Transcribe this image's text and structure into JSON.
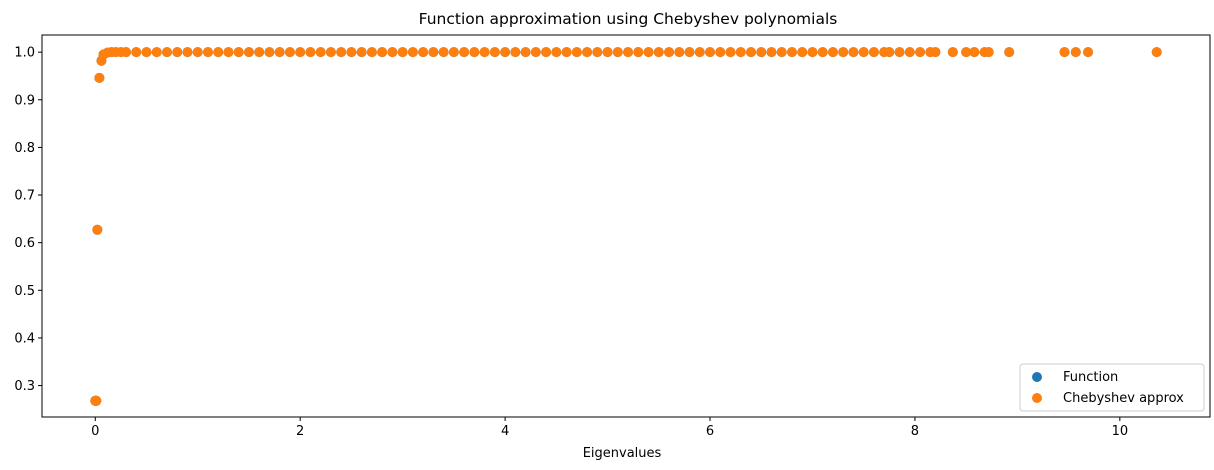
{
  "chart_data": {
    "type": "scatter",
    "title": "Function approximation using Chebyshev polynomials",
    "xlabel": "Eigenvalues",
    "ylabel": "",
    "xlim": [
      -0.52,
      10.88
    ],
    "ylim": [
      0.234,
      1.036
    ],
    "xticks": [
      0,
      2,
      4,
      6,
      8,
      10
    ],
    "yticks": [
      0.3,
      0.4,
      0.5,
      0.6,
      0.7,
      0.8,
      0.9,
      1.0
    ],
    "xtick_labels": [
      "0",
      "2",
      "4",
      "6",
      "8",
      "10"
    ],
    "ytick_labels": [
      "0.3",
      "0.4",
      "0.5",
      "0.6",
      "0.7",
      "0.8",
      "0.9",
      "1.0"
    ],
    "grid": false,
    "legend_position": "lower-right",
    "series": [
      {
        "name": "Function",
        "color": "#1f77b4",
        "points": [
          [
            0.0,
            0.268
          ],
          [
            0.003,
            0.268
          ],
          [
            0.006,
            0.268
          ],
          [
            0.01,
            0.268
          ],
          [
            0.02,
            0.627
          ],
          [
            0.04,
            0.946
          ],
          [
            0.06,
            0.982
          ],
          [
            0.08,
            0.995
          ],
          [
            0.12,
            0.999
          ],
          [
            0.16,
            1.0
          ],
          [
            0.2,
            1.0
          ],
          [
            0.25,
            1.0
          ],
          [
            0.3,
            1.0
          ],
          [
            0.4,
            1.0
          ],
          [
            0.5,
            1.0
          ],
          [
            0.6,
            1.0
          ],
          [
            0.7,
            1.0
          ],
          [
            0.8,
            1.0
          ],
          [
            0.9,
            1.0
          ],
          [
            1.0,
            1.0
          ],
          [
            1.1,
            1.0
          ],
          [
            1.2,
            1.0
          ],
          [
            1.3,
            1.0
          ],
          [
            1.4,
            1.0
          ],
          [
            1.5,
            1.0
          ],
          [
            1.6,
            1.0
          ],
          [
            1.7,
            1.0
          ],
          [
            1.8,
            1.0
          ],
          [
            1.9,
            1.0
          ],
          [
            2.0,
            1.0
          ],
          [
            2.1,
            1.0
          ],
          [
            2.2,
            1.0
          ],
          [
            2.3,
            1.0
          ],
          [
            2.4,
            1.0
          ],
          [
            2.5,
            1.0
          ],
          [
            2.6,
            1.0
          ],
          [
            2.7,
            1.0
          ],
          [
            2.8,
            1.0
          ],
          [
            2.9,
            1.0
          ],
          [
            3.0,
            1.0
          ],
          [
            3.1,
            1.0
          ],
          [
            3.2,
            1.0
          ],
          [
            3.3,
            1.0
          ],
          [
            3.4,
            1.0
          ],
          [
            3.5,
            1.0
          ],
          [
            3.6,
            1.0
          ],
          [
            3.7,
            1.0
          ],
          [
            3.8,
            1.0
          ],
          [
            3.9,
            1.0
          ],
          [
            4.0,
            1.0
          ],
          [
            4.1,
            1.0
          ],
          [
            4.2,
            1.0
          ],
          [
            4.3,
            1.0
          ],
          [
            4.4,
            1.0
          ],
          [
            4.5,
            1.0
          ],
          [
            4.6,
            1.0
          ],
          [
            4.7,
            1.0
          ],
          [
            4.8,
            1.0
          ],
          [
            4.9,
            1.0
          ],
          [
            5.0,
            1.0
          ],
          [
            5.1,
            1.0
          ],
          [
            5.2,
            1.0
          ],
          [
            5.3,
            1.0
          ],
          [
            5.4,
            1.0
          ],
          [
            5.5,
            1.0
          ],
          [
            5.6,
            1.0
          ],
          [
            5.7,
            1.0
          ],
          [
            5.8,
            1.0
          ],
          [
            5.9,
            1.0
          ],
          [
            6.0,
            1.0
          ],
          [
            6.1,
            1.0
          ],
          [
            6.2,
            1.0
          ],
          [
            6.3,
            1.0
          ],
          [
            6.4,
            1.0
          ],
          [
            6.5,
            1.0
          ],
          [
            6.6,
            1.0
          ],
          [
            6.7,
            1.0
          ],
          [
            6.8,
            1.0
          ],
          [
            6.9,
            1.0
          ],
          [
            7.0,
            1.0
          ],
          [
            7.1,
            1.0
          ],
          [
            7.2,
            1.0
          ],
          [
            7.3,
            1.0
          ],
          [
            7.4,
            1.0
          ],
          [
            7.5,
            1.0
          ],
          [
            7.6,
            1.0
          ],
          [
            7.7,
            1.0
          ],
          [
            7.75,
            1.0
          ],
          [
            7.85,
            1.0
          ],
          [
            7.95,
            1.0
          ],
          [
            8.05,
            1.0
          ],
          [
            8.15,
            1.0
          ],
          [
            8.2,
            1.0
          ],
          [
            8.37,
            1.0
          ],
          [
            8.5,
            1.0
          ],
          [
            8.58,
            1.0
          ],
          [
            8.68,
            1.0
          ],
          [
            8.72,
            1.0
          ],
          [
            8.92,
            1.0
          ],
          [
            9.46,
            1.0
          ],
          [
            9.57,
            1.0
          ],
          [
            9.69,
            1.0
          ],
          [
            10.36,
            1.0
          ]
        ]
      },
      {
        "name": "Chebyshev approx",
        "color": "#ff7f0e",
        "points": [
          [
            0.0,
            0.268
          ],
          [
            0.003,
            0.268
          ],
          [
            0.006,
            0.268
          ],
          [
            0.01,
            0.268
          ],
          [
            0.02,
            0.627
          ],
          [
            0.04,
            0.946
          ],
          [
            0.06,
            0.982
          ],
          [
            0.08,
            0.995
          ],
          [
            0.12,
            0.999
          ],
          [
            0.16,
            1.0
          ],
          [
            0.2,
            1.0
          ],
          [
            0.25,
            1.0
          ],
          [
            0.3,
            1.0
          ],
          [
            0.4,
            1.0
          ],
          [
            0.5,
            1.0
          ],
          [
            0.6,
            1.0
          ],
          [
            0.7,
            1.0
          ],
          [
            0.8,
            1.0
          ],
          [
            0.9,
            1.0
          ],
          [
            1.0,
            1.0
          ],
          [
            1.1,
            1.0
          ],
          [
            1.2,
            1.0
          ],
          [
            1.3,
            1.0
          ],
          [
            1.4,
            1.0
          ],
          [
            1.5,
            1.0
          ],
          [
            1.6,
            1.0
          ],
          [
            1.7,
            1.0
          ],
          [
            1.8,
            1.0
          ],
          [
            1.9,
            1.0
          ],
          [
            2.0,
            1.0
          ],
          [
            2.1,
            1.0
          ],
          [
            2.2,
            1.0
          ],
          [
            2.3,
            1.0
          ],
          [
            2.4,
            1.0
          ],
          [
            2.5,
            1.0
          ],
          [
            2.6,
            1.0
          ],
          [
            2.7,
            1.0
          ],
          [
            2.8,
            1.0
          ],
          [
            2.9,
            1.0
          ],
          [
            3.0,
            1.0
          ],
          [
            3.1,
            1.0
          ],
          [
            3.2,
            1.0
          ],
          [
            3.3,
            1.0
          ],
          [
            3.4,
            1.0
          ],
          [
            3.5,
            1.0
          ],
          [
            3.6,
            1.0
          ],
          [
            3.7,
            1.0
          ],
          [
            3.8,
            1.0
          ],
          [
            3.9,
            1.0
          ],
          [
            4.0,
            1.0
          ],
          [
            4.1,
            1.0
          ],
          [
            4.2,
            1.0
          ],
          [
            4.3,
            1.0
          ],
          [
            4.4,
            1.0
          ],
          [
            4.5,
            1.0
          ],
          [
            4.6,
            1.0
          ],
          [
            4.7,
            1.0
          ],
          [
            4.8,
            1.0
          ],
          [
            4.9,
            1.0
          ],
          [
            5.0,
            1.0
          ],
          [
            5.1,
            1.0
          ],
          [
            5.2,
            1.0
          ],
          [
            5.3,
            1.0
          ],
          [
            5.4,
            1.0
          ],
          [
            5.5,
            1.0
          ],
          [
            5.6,
            1.0
          ],
          [
            5.7,
            1.0
          ],
          [
            5.8,
            1.0
          ],
          [
            5.9,
            1.0
          ],
          [
            6.0,
            1.0
          ],
          [
            6.1,
            1.0
          ],
          [
            6.2,
            1.0
          ],
          [
            6.3,
            1.0
          ],
          [
            6.4,
            1.0
          ],
          [
            6.5,
            1.0
          ],
          [
            6.6,
            1.0
          ],
          [
            6.7,
            1.0
          ],
          [
            6.8,
            1.0
          ],
          [
            6.9,
            1.0
          ],
          [
            7.0,
            1.0
          ],
          [
            7.1,
            1.0
          ],
          [
            7.2,
            1.0
          ],
          [
            7.3,
            1.0
          ],
          [
            7.4,
            1.0
          ],
          [
            7.5,
            1.0
          ],
          [
            7.6,
            1.0
          ],
          [
            7.7,
            1.0
          ],
          [
            7.75,
            1.0
          ],
          [
            7.85,
            1.0
          ],
          [
            7.95,
            1.0
          ],
          [
            8.05,
            1.0
          ],
          [
            8.15,
            1.0
          ],
          [
            8.2,
            1.0
          ],
          [
            8.37,
            1.0
          ],
          [
            8.5,
            1.0
          ],
          [
            8.58,
            1.0
          ],
          [
            8.68,
            1.0
          ],
          [
            8.72,
            1.0
          ],
          [
            8.92,
            1.0
          ],
          [
            9.46,
            1.0
          ],
          [
            9.57,
            1.0
          ],
          [
            9.69,
            1.0
          ],
          [
            10.36,
            1.0
          ]
        ]
      }
    ]
  }
}
